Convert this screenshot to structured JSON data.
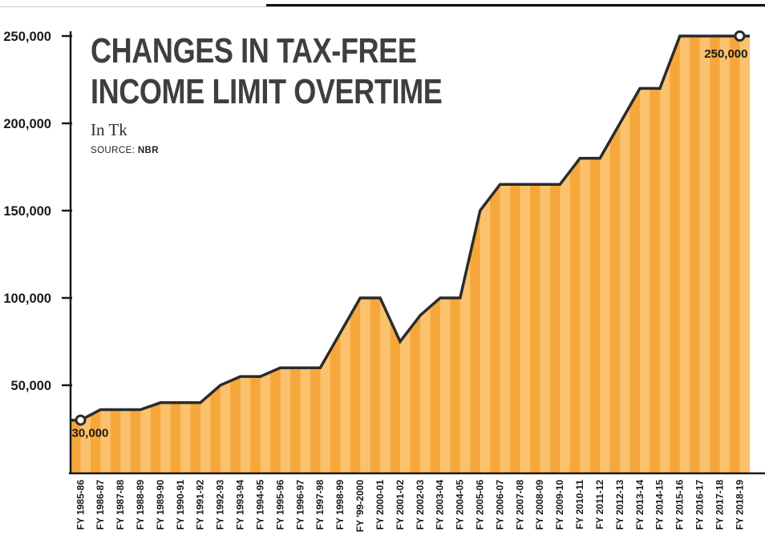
{
  "header": {
    "title_line1": "CHANGES IN TAX-FREE",
    "title_line2": "INCOME LIMIT OVERTIME",
    "subtitle": "In Tk",
    "source_label": "SOURCE:",
    "source_value": "NBR"
  },
  "chart_data": {
    "type": "area",
    "title": "CHANGES IN TAX-FREE INCOME LIMIT OVERTIME",
    "xlabel": "",
    "ylabel": "In Tk",
    "source": "NBR",
    "ylim": [
      0,
      250000
    ],
    "grid": false,
    "legend": "none",
    "categories": [
      "FY 1985-86",
      "FY 1986-87",
      "FY 1987-88",
      "FY 1988-89",
      "FY 1989-90",
      "FY 1990-91",
      "FY 1991-92",
      "FY 1992-93",
      "FY 1993-94",
      "FY 1994-95",
      "FY 1995-96",
      "FY 1996-97",
      "FY 1997-98",
      "FY 1998-99",
      "FY '99-2000",
      "FY 2000-01",
      "FY 2001-02",
      "FY 2002-03",
      "FY 2003-04",
      "FY 2004-05",
      "FY 2005-06",
      "FY 2006-07",
      "FY 2007-08",
      "FY 2008-09",
      "FY 2009-10",
      "FY 2010-11",
      "FY 2011-12",
      "FY 2012-13",
      "FY 2013-14",
      "FY 2014-15",
      "FY 2015-16",
      "FY 2016-17",
      "FY 2017-18",
      "FY 2018-19"
    ],
    "values": [
      30000,
      36000,
      36000,
      36000,
      40000,
      40000,
      40000,
      50000,
      55000,
      55000,
      60000,
      60000,
      60000,
      80000,
      100000,
      100000,
      75000,
      90000,
      100000,
      100000,
      150000,
      165000,
      165000,
      165000,
      165000,
      180000,
      180000,
      200000,
      220000,
      220000,
      250000,
      250000,
      250000,
      250000
    ],
    "y_ticks": [
      50000,
      100000,
      150000,
      200000,
      250000
    ],
    "y_tick_labels": [
      "50,000",
      "100,000",
      "150,000",
      "200,000",
      "250,000"
    ],
    "annotations": [
      {
        "index": 0,
        "label": "30,000",
        "position": "below-right"
      },
      {
        "index": 33,
        "label": "250,000",
        "position": "below-left"
      }
    ],
    "colors": {
      "area_stripe_dark": "#F6A73C",
      "area_stripe_light": "#FBC26E",
      "line": "#2B2B2B",
      "axis": "#1A1A1A",
      "tick_text": "#1A1A1A"
    }
  }
}
